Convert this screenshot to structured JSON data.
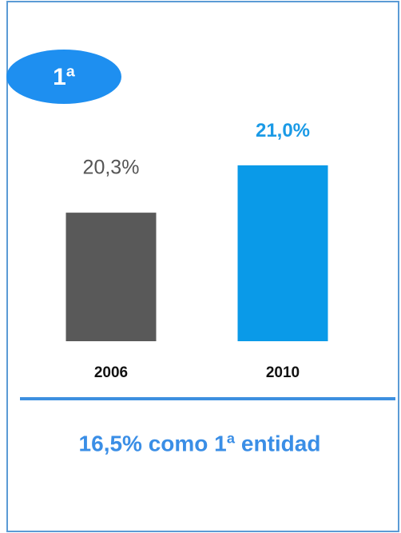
{
  "badge": "1ª",
  "chart_data": {
    "type": "bar",
    "categories": [
      "2006",
      "2010"
    ],
    "values": [
      20.3,
      21.0
    ],
    "value_labels": [
      "20,3%",
      "21,0%"
    ],
    "colors": [
      "#595959",
      "#0a9ae8"
    ],
    "ylim": [
      18.4,
      21.4
    ]
  },
  "footer": "16,5% como 1ª entidad"
}
